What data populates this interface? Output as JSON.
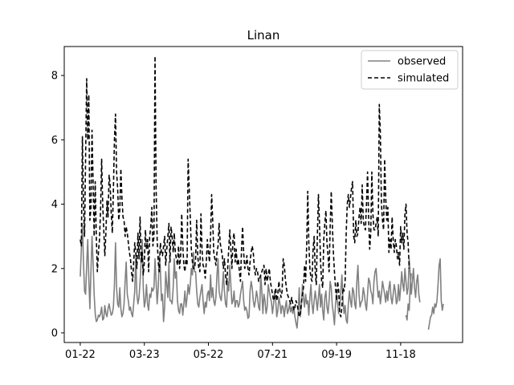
{
  "chart_data": {
    "type": "line",
    "title": "Linan",
    "xlabel": "",
    "ylabel": "",
    "x_tick_labels": [
      "01-22",
      "03-23",
      "05-22",
      "07-21",
      "09-19",
      "11-18"
    ],
    "x_tick_days": [
      0,
      60,
      120,
      180,
      240,
      300
    ],
    "xlim": [
      -15,
      358
    ],
    "ylim": [
      -0.3,
      8.9
    ],
    "y_ticks": [
      0,
      2,
      4,
      6,
      8
    ],
    "grid": false,
    "legend_position": "upper-right",
    "series": [
      {
        "name": "observed",
        "color": "#808080",
        "style": "solid",
        "segments": [
          {
            "start_day": 0,
            "values": [
              1.75,
              2.6,
              3.4,
              2.2,
              1.3,
              1.2,
              2.1,
              2.9,
              1.7,
              0.75,
              1.9,
              3.0,
              2.2,
              1.2,
              0.6,
              0.35,
              0.4,
              0.55,
              0.5,
              0.6,
              0.8,
              0.4,
              0.45,
              0.85,
              0.6,
              0.5,
              0.75,
              0.9,
              0.7,
              0.55,
              0.6,
              0.8,
              1.5,
              2.8,
              1.4,
              0.9,
              0.8,
              1.4,
              0.75,
              0.5,
              0.6,
              0.9,
              1.6,
              2.2,
              1.2,
              1.0,
              0.7,
              0.8,
              0.6,
              0.5,
              0.9,
              1.3,
              2.4,
              1.2,
              0.9,
              1.1,
              1.6,
              2.2,
              2.9,
              1.4,
              0.8,
              1.0,
              1.5,
              0.9,
              0.7,
              1.2,
              1.1,
              1.4,
              1.3,
              1.4,
              2.3,
              1.6,
              0.9,
              1.4,
              2.4,
              2.0,
              1.0,
              1.2,
              0.35,
              0.8,
              1.9,
              1.5,
              1.1,
              2.2,
              1.0,
              1.0,
              0.9,
              1.4,
              2.3,
              1.7,
              1.9,
              1.0,
              0.7,
              0.6,
              0.9,
              0.9,
              0.55,
              0.9,
              1.3,
              0.8,
              1.1,
              1.5,
              1.2,
              1.5,
              2.0,
              1.8,
              2.5,
              1.9,
              1.9,
              1.3,
              0.9,
              0.8,
              1.1,
              1.3,
              1.5,
              1.0,
              0.6,
              0.95,
              0.8,
              1.2,
              1.3,
              1.0,
              1.8,
              1.1,
              1.4,
              1.0,
              0.85,
              1.1,
              1.8,
              2.3,
              1.3,
              1.1,
              1.0,
              1.4,
              1.9,
              1.3,
              0.9,
              0.8,
              1.6,
              1.3,
              2.1,
              1.5,
              0.9,
              1.0,
              1.3,
              0.8,
              1.0,
              1.0,
              0.8,
              0.9,
              1.2,
              1.4,
              1.6,
              1.0,
              0.7,
              0.8,
              0.7,
              0.45,
              0.5,
              1.3,
              1.6,
              1.4,
              1.0,
              0.8,
              1.0,
              1.3,
              1.1,
              0.8,
              0.7,
              1.8,
              1.3,
              0.6,
              1.2,
              1.0,
              0.6,
              0.8,
              1.5,
              1.3,
              1.1,
              0.95,
              0.6,
              0.9,
              1.3,
              1.0,
              0.5,
              0.7,
              1.1,
              0.9,
              0.6,
              0.85,
              0.8,
              0.5,
              0.8,
              1.0,
              0.6,
              0.7,
              0.9,
              0.65,
              0.8,
              0.6,
              0.8,
              0.5,
              0.3,
              0.15,
              0.6,
              1.4,
              0.5,
              0.8,
              1.5,
              1.1,
              0.8,
              1.2,
              0.9,
              1.0,
              0.55,
              1.1,
              1.5,
              0.9,
              0.6,
              1.0,
              1.3,
              1.0,
              0.7,
              1.1,
              1.5,
              0.8,
              1.2,
              0.7,
              0.4,
              1.1,
              1.3,
              0.8,
              0.6,
              1.0,
              1.6,
              1.4,
              0.85,
              0.6,
              0.25,
              0.9,
              1.2,
              0.9,
              0.6,
              0.8,
              1.3,
              1.8,
              1.0,
              0.6,
              0.85,
              0.4,
              0.3,
              0.9,
              1.3,
              1.0,
              0.8,
              1.4,
              1.3,
              0.9,
              0.75,
              1.6,
              2.1,
              1.2,
              0.8,
              0.95,
              1.0,
              1.4,
              1.2,
              0.9,
              0.7,
              1.2,
              1.7,
              1.6,
              1.3,
              1.2,
              0.9,
              1.6,
              1.9,
              2.0,
              1.5,
              1.1,
              1.3,
              0.9,
              1.2,
              1.6,
              1.4,
              1.2,
              0.95,
              1.3,
              1.0,
              1.4,
              1.6,
              1.1,
              0.9,
              1.2,
              1.5,
              1.3,
              0.9,
              1.0,
              1.5,
              1.0,
              1.4,
              1.9,
              1.5,
              1.3,
              2.0,
              1.6,
              1.2,
              1.4,
              2.3,
              1.8,
              1.2,
              1.6,
              2.0,
              1.4,
              1.1,
              1.6,
              1.8,
              1.2,
              0.95
            ]
          },
          {
            "start_day": 305,
            "values": [
              0.55,
              0.4,
              0.9,
              0.7,
              1.5,
              1.85
            ]
          },
          {
            "start_day": 326,
            "values": [
              0.1,
              0.3,
              0.5,
              0.55,
              0.8,
              0.6,
              0.9,
              0.8,
              1.0,
              1.5,
              2.1,
              2.3,
              1.0,
              0.7,
              0.9
            ]
          }
        ]
      },
      {
        "name": "simulated",
        "color": "#000000",
        "style": "dashed",
        "segments": [
          {
            "start_day": 0,
            "values": [
              2.9,
              2.7,
              6.1,
              4.0,
              3.0,
              5.5,
              7.9,
              6.0,
              7.4,
              3.5,
              3.9,
              6.3,
              4.7,
              3.0,
              4.7,
              3.0,
              1.9,
              2.5,
              2.9,
              3.8,
              5.4,
              4.0,
              3.2,
              2.4,
              3.1,
              4.1,
              3.6,
              4.9,
              4.6,
              3.7,
              3.1,
              4.4,
              6.0,
              6.8,
              5.0,
              4.5,
              3.5,
              3.8,
              5.1,
              4.2,
              3.6,
              3.5,
              3.0,
              3.3,
              3.1,
              2.8,
              2.5,
              2.3,
              1.9,
              1.6,
              2.2,
              2.8,
              2.5,
              2.0,
              3.1,
              2.3,
              3.6,
              2.2,
              2.5,
              1.8,
              2.2,
              3.2,
              2.6,
              2.9,
              1.9,
              3.0,
              3.3,
              3.9,
              2.7,
              3.0,
              8.6,
              4.5,
              2.9,
              2.2,
              1.9,
              2.8,
              2.5,
              2.4,
              2.7,
              3.0,
              2.1,
              2.6,
              3.0,
              3.4,
              2.2,
              3.3,
              3.0,
              2.5,
              3.1,
              2.5,
              2.3,
              2.1,
              2.7,
              2.0,
              2.4,
              3.7,
              2.7,
              2.1,
              1.9,
              2.3,
              2.1,
              5.4,
              4.5,
              3.6,
              2.6,
              2.2,
              2.0,
              2.0,
              2.3,
              3.5,
              2.4,
              2.0,
              1.9,
              3.7,
              2.6,
              2.1,
              2.0,
              1.7,
              2.2,
              2.9,
              2.5,
              2.2,
              3.0,
              4.3,
              3.5,
              2.5,
              2.3,
              2.1,
              2.5,
              2.7,
              3.4,
              2.8,
              2.6,
              2.4,
              2.0,
              2.3,
              1.8,
              1.5,
              2.0,
              2.6,
              3.2,
              2.6,
              2.0,
              2.9,
              3.1,
              2.2,
              2.6,
              2.1,
              2.3,
              1.9,
              1.6,
              2.6,
              3.3,
              2.5,
              2.0,
              2.1,
              2.4,
              2.0,
              1.8,
              2.2,
              2.5,
              2.7,
              2.5,
              2.0,
              1.8,
              2.0,
              1.9,
              1.6,
              1.7,
              1.8,
              1.9,
              2.0,
              2.1,
              1.5,
              2.0,
              1.6,
              1.8,
              2.0,
              1.6,
              1.4,
              1.2,
              1.0,
              1.1,
              1.4,
              1.0,
              1.2,
              1.6,
              1.3,
              1.1,
              1.3,
              2.3,
              2.1,
              1.7,
              1.4,
              1.2,
              1.1,
              1.0,
              0.9,
              1.1,
              0.9,
              0.7,
              0.8,
              1.0,
              0.9,
              0.7,
              0.5,
              0.6,
              0.9,
              1.2,
              1.4,
              2.1,
              1.6,
              2.7,
              4.4,
              2.8,
              2.0,
              1.7,
              1.6,
              2.6,
              3.0,
              1.9,
              1.5,
              3.0,
              4.3,
              3.4,
              2.2,
              1.6,
              1.4,
              2.9,
              3.4,
              3.8,
              2.8,
              2.4,
              1.9,
              3.3,
              4.4,
              3.4,
              2.5,
              1.9,
              1.4,
              1.0,
              1.6,
              1.3,
              0.6,
              0.5,
              0.8,
              1.4,
              1.3,
              1.6,
              3.1,
              4.0,
              4.3,
              3.9,
              4.2,
              4.5,
              4.7,
              3.0,
              2.8,
              3.5,
              3.0,
              3.1,
              3.6,
              3.9,
              3.4,
              4.6,
              3.5,
              3.3,
              3.2,
              4.0,
              5.0,
              3.6,
              2.6,
              3.1,
              5.0,
              3.7,
              3.2,
              3.2,
              3.4,
              3.6,
              3.0,
              7.1,
              6.2,
              4.0,
              3.5,
              3.2,
              5.4,
              4.2,
              3.5,
              3.9,
              2.5,
              2.9,
              2.6,
              3.6,
              2.9,
              2.5,
              2.9,
              2.7,
              2.3,
              2.5,
              2.1,
              3.3,
              2.8,
              3.1,
              2.6,
              3.7,
              4.0,
              3.1,
              2.8,
              2.0
            ]
          }
        ]
      }
    ]
  }
}
